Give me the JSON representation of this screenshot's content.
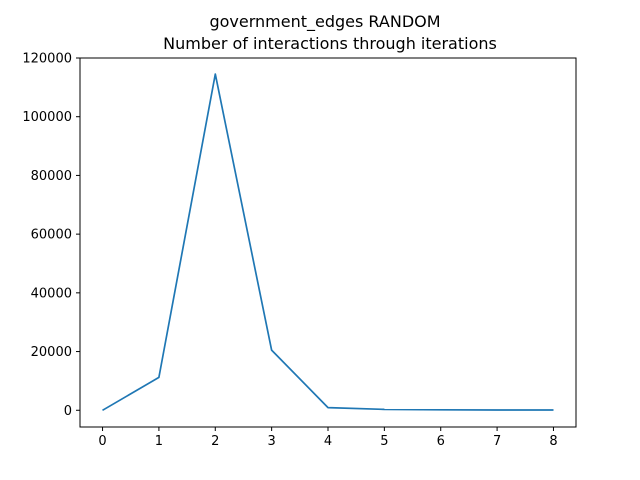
{
  "chart_data": {
    "type": "line",
    "title": "government_edges RANDOM",
    "subtitle": "Number of interactions through iterations",
    "xlabel": "",
    "ylabel": "",
    "x": [
      0,
      1,
      2,
      3,
      4,
      5,
      6,
      7,
      8
    ],
    "series": [
      {
        "values": [
          0,
          11200,
          114500,
          20500,
          900,
          300,
          150,
          100,
          80
        ]
      }
    ],
    "xlim": [
      -0.4,
      8.4
    ],
    "ylim": [
      -5700,
      120000
    ],
    "xticks": [
      0,
      1,
      2,
      3,
      4,
      5,
      6,
      7,
      8
    ],
    "yticks": [
      0,
      20000,
      40000,
      60000,
      80000,
      100000,
      120000
    ],
    "grid": false,
    "line_color": "#1f77b4"
  }
}
